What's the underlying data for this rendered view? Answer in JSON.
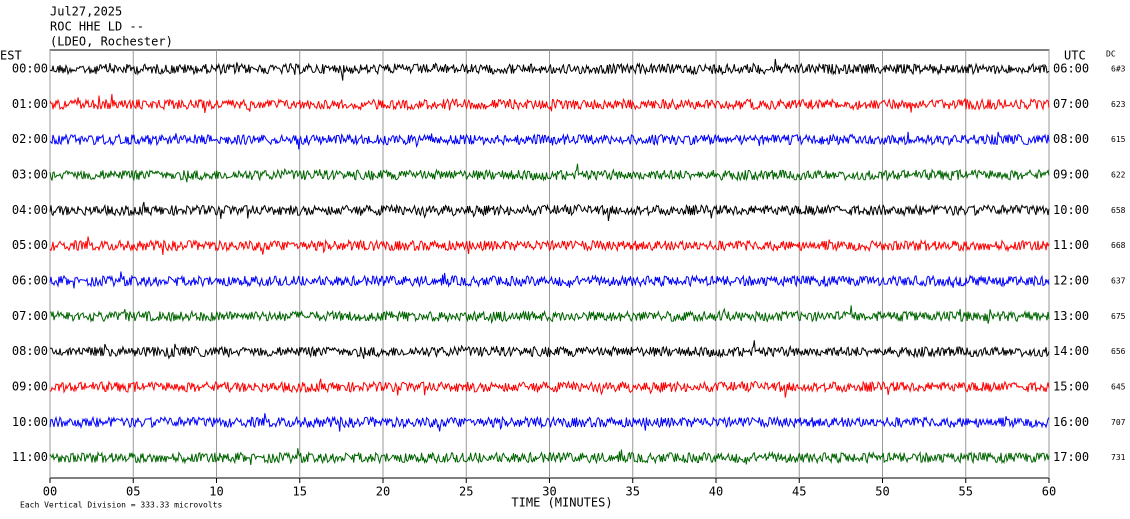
{
  "chart_data": {
    "type": "helicorder",
    "title_lines": [
      "Jul27,2025",
      "ROC HHE LD --",
      "(LDEO, Rochester)"
    ],
    "left_axis_label": "EST",
    "right_axis_label": "UTC",
    "dc_label": "DC",
    "rows": [
      {
        "est": "00:00",
        "utc": "06:00",
        "dc": "6#3",
        "color": "#000000"
      },
      {
        "est": "01:00",
        "utc": "07:00",
        "dc": "623",
        "color": "#ff0000"
      },
      {
        "est": "02:00",
        "utc": "08:00",
        "dc": "615",
        "color": "#0000ff"
      },
      {
        "est": "03:00",
        "utc": "09:00",
        "dc": "622",
        "color": "#006400"
      },
      {
        "est": "04:00",
        "utc": "10:00",
        "dc": "658",
        "color": "#000000"
      },
      {
        "est": "05:00",
        "utc": "11:00",
        "dc": "668",
        "color": "#ff0000"
      },
      {
        "est": "06:00",
        "utc": "12:00",
        "dc": "637",
        "color": "#0000ff"
      },
      {
        "est": "07:00",
        "utc": "13:00",
        "dc": "675",
        "color": "#006400"
      },
      {
        "est": "08:00",
        "utc": "14:00",
        "dc": "656",
        "color": "#000000"
      },
      {
        "est": "09:00",
        "utc": "15:00",
        "dc": "645",
        "color": "#ff0000"
      },
      {
        "est": "10:00",
        "utc": "16:00",
        "dc": "707",
        "color": "#0000ff"
      },
      {
        "est": "11:00",
        "utc": "17:00",
        "dc": "731",
        "color": "#006400"
      }
    ],
    "xlim": [
      0,
      60
    ],
    "xticks": [
      {
        "value": 0,
        "label": "00"
      },
      {
        "value": 5,
        "label": "05"
      },
      10,
      15,
      20,
      25,
      30,
      35,
      40,
      45,
      50,
      55,
      60
    ],
    "x_label": "TIME (MINUTES)",
    "footer": "Each Vertical Division =  333.33 microvolts",
    "grid": true
  }
}
